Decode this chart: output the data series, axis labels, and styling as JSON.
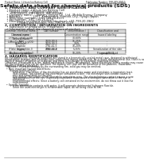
{
  "title": "Safety data sheet for chemical products (SDS)",
  "header_left": "Product Name: Lithium Ion Battery Cell",
  "header_right_l1": "Publication Number: 99R-049-00010",
  "header_right_l2": "Established / Revision: Dec.7.2016",
  "section1_title": "1. PRODUCT AND COMPANY IDENTIFICATION",
  "section1_lines": [
    "  • Product name: Lithium Ion Battery Cell",
    "  • Product code: Cylindrical-type cell",
    "      (IHR18650U, IHR18650L, IHR18650A)",
    "  • Company name:     Battery Encyte Co., Ltd., Mobile Energy Company",
    "  • Address:             2051  Kannondori, Sumoto-City, Hyogo, Japan",
    "  • Telephone number:   +81-799-20-4111",
    "  • Fax number:  +81-799-26-4129",
    "  • Emergency telephone number (daytime): +81-799-20-3962",
    "                (Night and holiday): +81-799-26-4129"
  ],
  "section2_title": "2. COMPOSITION / INFORMATION ON INGREDIENTS",
  "section2_intro": "  • Substance or preparation: Preparation",
  "section2_sub": "  • Information about the chemical nature of product:",
  "table_headers": [
    "Common chemical name /\nSeveral name",
    "CAS number",
    "Concentration /\nConcentration range",
    "Classification and\nhazard labeling"
  ],
  "table_col0": [
    "Common name /\nSeveral name",
    "Lithium cobalt oxide\n(LiMnxCoyNi(1-x-y)O2)",
    "Iron",
    "Aluminum",
    "Graphite\n(Flake or graphite-I)\n(Air-flocor graphite-I)",
    "Copper",
    "Organic electrolyte"
  ],
  "table_col1": [
    "",
    "",
    "7439-89-6",
    "7429-90-5",
    "7782-42-5\n7782-44-2",
    "7440-50-8",
    ""
  ],
  "table_col2": [
    "",
    "30-60%",
    "15-25%",
    "2.6%",
    "10-20%",
    "5-15%",
    "10-20%"
  ],
  "table_col3": [
    "",
    "",
    "-",
    "-",
    "-",
    "Sensitization of the skin\ngroup No.2",
    "Flammable liquid"
  ],
  "section3_title": "3. HAZARDS IDENTIFICATION",
  "section3_para1": [
    "For the battery cell, chemical materials are stored in a hermetically sealed metal case, designed to withstand",
    "temperature changes and electrode-ionic-conductions during normal use. As a result, during normal use, there is no",
    "physical danger of ignition or explosion and there is no danger of hazardous materials leakage.",
    "  However, if exposed to a fire, added mechanical shocks, decomposes, when electrolyte enters nearby may cause",
    "the gas leakage vent can be operated. The battery cell case will be breached or fire-patterns. Hazardous",
    "materials may be released.",
    "  Moreover, if heated strongly by the surrounding fire, solid gas may be emitted."
  ],
  "section3_bullet1": "  • Most important hazard and effects:",
  "section3_health": "      Human health effects:",
  "section3_health_lines": [
    "          Inhalation: The steam of the electrolyte has an anesthesia action and stimulates a respiratory tract.",
    "          Skin contact: The steam of the electrolyte stimulates a skin. The electrolyte skin contact causes a",
    "          sore and stimulation on the skin.",
    "          Eye contact: The steam of the electrolyte stimulates eyes. The electrolyte eye contact causes a sore",
    "          and stimulation on the eye. Especially, substance that causes a strong inflammation of the eye is",
    "          contained.",
    "          Environmental effects: Since a battery cell remained in the environment, do not throw out it into the",
    "          environment."
  ],
  "section3_bullet2": "  • Specific hazards:",
  "section3_specific": [
    "          If the electrolyte contacts with water, it will generate detrimental hydrogen fluoride.",
    "          Since the used electrolyte is inflammable liquid, do not bring close to fire."
  ],
  "bg_color": "#ffffff",
  "text_color": "#1a1a1a",
  "line_color": "#888888"
}
